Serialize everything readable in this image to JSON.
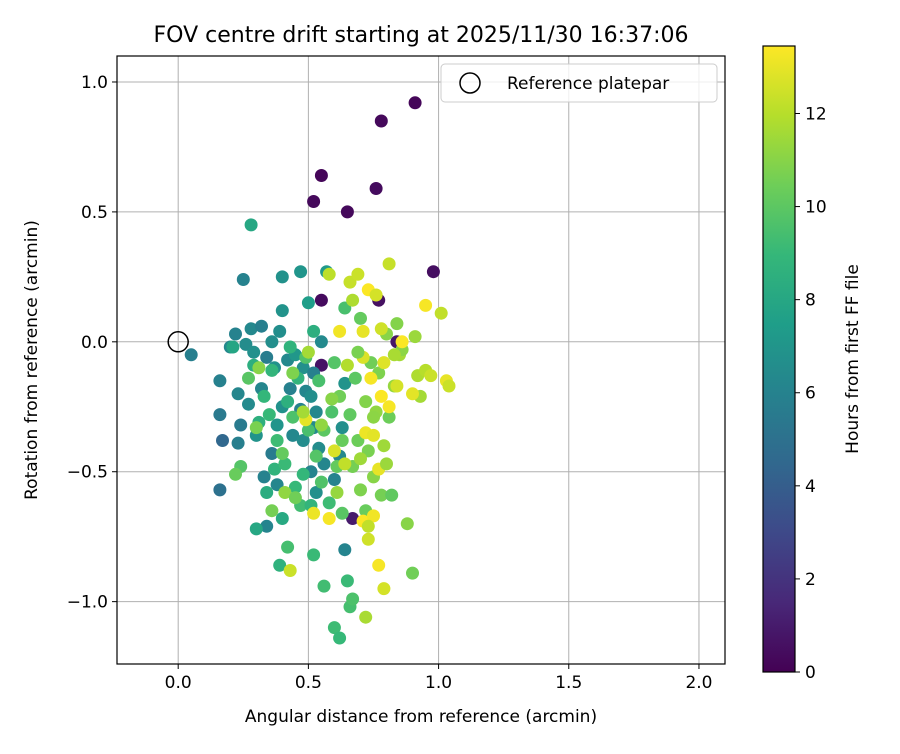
{
  "chart_data": {
    "type": "scatter",
    "title": "FOV centre drift starting at 2025/11/30 16:37:06",
    "xlabel": "Angular distance from reference (arcmin)",
    "ylabel": "Rotation from reference (arcmin)",
    "xlim": [
      -0.235,
      2.1
    ],
    "ylim": [
      -1.24,
      1.1
    ],
    "xticks": [
      0.0,
      0.5,
      1.0,
      1.5,
      2.0
    ],
    "xtick_labels": [
      "0.0",
      "0.5",
      "1.0",
      "1.5",
      "2.0"
    ],
    "yticks": [
      -1.0,
      -0.5,
      0.0,
      0.5,
      1.0
    ],
    "ytick_labels": [
      "−1.0",
      "−0.5",
      "0.0",
      "0.5",
      "1.0"
    ],
    "grid": true,
    "legend": {
      "position": "top-right",
      "label": "Reference platepar"
    },
    "reference_point": {
      "x": 0.0,
      "y": 0.0
    },
    "colorbar": {
      "label": "Hours from first FF file",
      "cmap": "viridis",
      "range": [
        0,
        13.45
      ],
      "ticks": [
        0,
        2,
        4,
        6,
        8,
        10,
        12
      ],
      "tick_labels": [
        "0",
        "2",
        "4",
        "6",
        "8",
        "10",
        "12"
      ]
    },
    "colors": {
      "viridis_stops": [
        "#440154",
        "#482878",
        "#3e4989",
        "#31688e",
        "#26828e",
        "#1f9e89",
        "#35b779",
        "#6ece58",
        "#b5de2b",
        "#fde725"
      ]
    },
    "points": [
      [
        0.91,
        0.92,
        0.2
      ],
      [
        0.78,
        0.85,
        0.3
      ],
      [
        0.55,
        0.64,
        0.2
      ],
      [
        0.76,
        0.59,
        0.4
      ],
      [
        0.52,
        0.54,
        0.3
      ],
      [
        0.65,
        0.5,
        0.3
      ],
      [
        0.98,
        0.27,
        0.5
      ],
      [
        0.55,
        0.16,
        0.4
      ],
      [
        0.77,
        0.16,
        0.6
      ],
      [
        0.84,
        0.0,
        0.8
      ],
      [
        0.55,
        -0.09,
        0.7
      ],
      [
        0.67,
        -0.68,
        1.0
      ],
      [
        0.05,
        -0.05,
        5.8
      ],
      [
        0.16,
        -0.15,
        5.9
      ],
      [
        0.16,
        -0.28,
        5.5
      ],
      [
        0.17,
        -0.38,
        4.5
      ],
      [
        0.16,
        -0.57,
        5.0
      ],
      [
        0.2,
        -0.02,
        6.3
      ],
      [
        0.22,
        0.03,
        6.0
      ],
      [
        0.23,
        -0.2,
        6.2
      ],
      [
        0.24,
        -0.32,
        5.6
      ],
      [
        0.23,
        -0.39,
        5.8
      ],
      [
        0.25,
        0.24,
        6.0
      ],
      [
        0.26,
        -0.01,
        6.5
      ],
      [
        0.27,
        -0.24,
        6.4
      ],
      [
        0.28,
        0.05,
        6.3
      ],
      [
        0.29,
        -0.04,
        6.7
      ],
      [
        0.3,
        -0.36,
        6.9
      ],
      [
        0.32,
        0.06,
        5.8
      ],
      [
        0.32,
        -0.18,
        6.2
      ],
      [
        0.33,
        -0.52,
        6.0
      ],
      [
        0.34,
        -0.71,
        6.1
      ],
      [
        0.34,
        -0.06,
        5.7
      ],
      [
        0.36,
        0.0,
        6.6
      ],
      [
        0.36,
        -0.43,
        5.6
      ],
      [
        0.37,
        -0.1,
        6.8
      ],
      [
        0.38,
        -0.32,
        7.0
      ],
      [
        0.38,
        -0.55,
        6.2
      ],
      [
        0.39,
        0.04,
        6.6
      ],
      [
        0.4,
        -0.25,
        6.8
      ],
      [
        0.4,
        0.12,
        6.9
      ],
      [
        0.4,
        0.25,
        6.8
      ],
      [
        0.42,
        -0.07,
        6.3
      ],
      [
        0.43,
        -0.18,
        5.9
      ],
      [
        0.44,
        -0.36,
        6.3
      ],
      [
        0.45,
        -0.05,
        7.1
      ],
      [
        0.47,
        0.27,
        7.0
      ],
      [
        0.47,
        -0.26,
        6.0
      ],
      [
        0.48,
        -0.1,
        6.7
      ],
      [
        0.48,
        -0.38,
        6.5
      ],
      [
        0.49,
        -0.19,
        6.2
      ],
      [
        0.5,
        0.15,
        7.5
      ],
      [
        0.51,
        -0.5,
        6.1
      ],
      [
        0.51,
        -0.21,
        6.6
      ],
      [
        0.52,
        -0.12,
        5.9
      ],
      [
        0.52,
        -0.33,
        6.4
      ],
      [
        0.53,
        -0.27,
        6.3
      ],
      [
        0.53,
        -0.58,
        6.7
      ],
      [
        0.54,
        -0.41,
        6.5
      ],
      [
        0.55,
        0.0,
        6.4
      ],
      [
        0.56,
        -0.47,
        6.2
      ],
      [
        0.57,
        0.27,
        7.2
      ],
      [
        0.6,
        -0.53,
        6.0
      ],
      [
        0.62,
        -0.44,
        6.3
      ],
      [
        0.63,
        -0.33,
        6.7
      ],
      [
        0.64,
        -0.8,
        6.1
      ],
      [
        0.64,
        -0.16,
        6.9
      ],
      [
        0.28,
        0.45,
        8.0
      ],
      [
        0.21,
        -0.02,
        7.9
      ],
      [
        0.29,
        -0.09,
        8.4
      ],
      [
        0.31,
        -0.31,
        8.5
      ],
      [
        0.3,
        -0.72,
        8.0
      ],
      [
        0.33,
        -0.21,
        8.9
      ],
      [
        0.34,
        -0.58,
        8.3
      ],
      [
        0.35,
        -0.28,
        9.0
      ],
      [
        0.36,
        -0.11,
        8.8
      ],
      [
        0.37,
        -0.49,
        8.7
      ],
      [
        0.38,
        -0.38,
        9.2
      ],
      [
        0.39,
        -0.86,
        8.6
      ],
      [
        0.4,
        -0.68,
        8.1
      ],
      [
        0.41,
        -0.47,
        9.1
      ],
      [
        0.42,
        -0.23,
        8.5
      ],
      [
        0.42,
        -0.79,
        9.4
      ],
      [
        0.43,
        -0.02,
        8.7
      ],
      [
        0.44,
        -0.29,
        9.6
      ],
      [
        0.45,
        -0.56,
        9.0
      ],
      [
        0.46,
        -0.14,
        8.8
      ],
      [
        0.47,
        -0.63,
        9.3
      ],
      [
        0.48,
        -0.51,
        8.9
      ],
      [
        0.49,
        -0.06,
        9.7
      ],
      [
        0.5,
        -0.34,
        9.5
      ],
      [
        0.51,
        -0.63,
        8.8
      ],
      [
        0.52,
        -0.82,
        9.1
      ],
      [
        0.52,
        0.04,
        8.4
      ],
      [
        0.53,
        -0.44,
        9.8
      ],
      [
        0.54,
        -0.15,
        9.5
      ],
      [
        0.55,
        -0.54,
        9.7
      ],
      [
        0.56,
        -0.34,
        10.0
      ],
      [
        0.56,
        -0.94,
        9.3
      ],
      [
        0.58,
        -0.62,
        9.2
      ],
      [
        0.59,
        -0.27,
        9.6
      ],
      [
        0.6,
        -0.08,
        9.8
      ],
      [
        0.6,
        -1.1,
        9.2
      ],
      [
        0.61,
        -0.48,
        10.2
      ],
      [
        0.62,
        -0.21,
        10.5
      ],
      [
        0.62,
        -1.14,
        9.0
      ],
      [
        0.63,
        -0.66,
        9.9
      ],
      [
        0.63,
        -0.38,
        10.3
      ],
      [
        0.64,
        0.13,
        9.5
      ],
      [
        0.65,
        -0.92,
        9.1
      ],
      [
        0.66,
        -1.02,
        9.4
      ],
      [
        0.66,
        -0.28,
        10.1
      ],
      [
        0.67,
        -0.99,
        9.6
      ],
      [
        0.67,
        -0.48,
        10.6
      ],
      [
        0.68,
        -0.14,
        10.0
      ],
      [
        0.69,
        -0.38,
        10.4
      ],
      [
        0.7,
        -0.57,
        10.8
      ],
      [
        0.7,
        0.09,
        10.2
      ],
      [
        0.72,
        -0.23,
        10.9
      ],
      [
        0.72,
        -0.65,
        10.3
      ],
      [
        0.73,
        -0.42,
        10.7
      ],
      [
        0.74,
        -0.08,
        10.5
      ],
      [
        0.75,
        -0.52,
        11.0
      ],
      [
        0.76,
        -0.27,
        11.2
      ],
      [
        0.77,
        -0.12,
        10.8
      ],
      [
        0.78,
        -0.59,
        10.6
      ],
      [
        0.79,
        -0.4,
        11.5
      ],
      [
        0.8,
        0.03,
        11.0
      ],
      [
        0.81,
        -0.29,
        10.4
      ],
      [
        0.82,
        -0.59,
        10.1
      ],
      [
        0.83,
        -0.17,
        11.3
      ],
      [
        0.84,
        0.07,
        10.9
      ],
      [
        0.85,
        -0.05,
        11.6
      ],
      [
        0.86,
        -0.03,
        11.1
      ],
      [
        0.88,
        -0.7,
        11.0
      ],
      [
        0.9,
        -0.89,
        10.5
      ],
      [
        0.91,
        0.02,
        11.4
      ],
      [
        0.92,
        -0.13,
        11.8
      ],
      [
        0.93,
        -0.21,
        11.6
      ],
      [
        0.95,
        -0.11,
        12.0
      ],
      [
        0.97,
        -0.13,
        12.4
      ],
      [
        1.01,
        0.11,
        12.2
      ],
      [
        1.03,
        -0.15,
        13.0
      ],
      [
        1.04,
        -0.17,
        12.4
      ],
      [
        0.95,
        0.14,
        13.3
      ],
      [
        0.73,
        0.2,
        13.4
      ],
      [
        0.62,
        0.04,
        13.2
      ],
      [
        0.58,
        0.26,
        12.1
      ],
      [
        0.66,
        0.23,
        12.3
      ],
      [
        0.67,
        0.16,
        11.8
      ],
      [
        0.69,
        0.26,
        12.4
      ],
      [
        0.71,
        0.04,
        13.0
      ],
      [
        0.76,
        0.18,
        12.6
      ],
      [
        0.78,
        0.05,
        12.5
      ],
      [
        0.81,
        0.3,
        12.3
      ],
      [
        0.65,
        -0.09,
        11.9
      ],
      [
        0.71,
        -0.06,
        12.7
      ],
      [
        0.72,
        -0.35,
        13.1
      ],
      [
        0.74,
        -0.14,
        13.3
      ],
      [
        0.75,
        -0.36,
        12.9
      ],
      [
        0.77,
        -0.49,
        13.0
      ],
      [
        0.78,
        -0.21,
        13.4
      ],
      [
        0.79,
        -0.08,
        12.8
      ],
      [
        0.81,
        -0.25,
        13.3
      ],
      [
        0.83,
        -0.05,
        11.7
      ],
      [
        0.84,
        -0.17,
        12.6
      ],
      [
        0.86,
        0.0,
        13.4
      ],
      [
        0.9,
        -0.2,
        12.9
      ],
      [
        0.71,
        -0.69,
        13.4
      ],
      [
        0.73,
        -0.76,
        12.5
      ],
      [
        0.75,
        -0.67,
        13.2
      ],
      [
        0.77,
        -0.86,
        13.3
      ],
      [
        0.72,
        -1.06,
        11.7
      ],
      [
        0.79,
        -0.95,
        12.6
      ],
      [
        0.58,
        -0.68,
        13.3
      ],
      [
        0.43,
        -0.88,
        12.4
      ],
      [
        0.49,
        -0.3,
        12.9
      ],
      [
        0.52,
        -0.66,
        13.1
      ],
      [
        0.6,
        -0.42,
        12.7
      ],
      [
        0.61,
        -0.58,
        11.3
      ],
      [
        0.64,
        -0.47,
        12.2
      ],
      [
        0.75,
        -0.29,
        11.1
      ],
      [
        0.69,
        -0.04,
        10.7
      ],
      [
        0.7,
        -0.45,
        11.5
      ],
      [
        0.8,
        -0.47,
        11.4
      ],
      [
        0.73,
        -0.71,
        12.2
      ],
      [
        0.59,
        -0.22,
        11.0
      ],
      [
        0.55,
        -0.32,
        11.2
      ],
      [
        0.5,
        -0.04,
        11.6
      ],
      [
        0.41,
        -0.58,
        11.2
      ],
      [
        0.45,
        -0.6,
        10.5
      ],
      [
        0.48,
        -0.27,
        11.6
      ],
      [
        0.36,
        -0.65,
        10.6
      ],
      [
        0.24,
        -0.48,
        9.8
      ],
      [
        0.22,
        -0.51,
        10.3
      ],
      [
        0.3,
        -0.33,
        10.7
      ],
      [
        0.27,
        -0.14,
        9.9
      ],
      [
        0.4,
        -0.43,
        10.2
      ],
      [
        0.44,
        -0.12,
        10.8
      ],
      [
        0.31,
        -0.1,
        11.0
      ]
    ]
  }
}
